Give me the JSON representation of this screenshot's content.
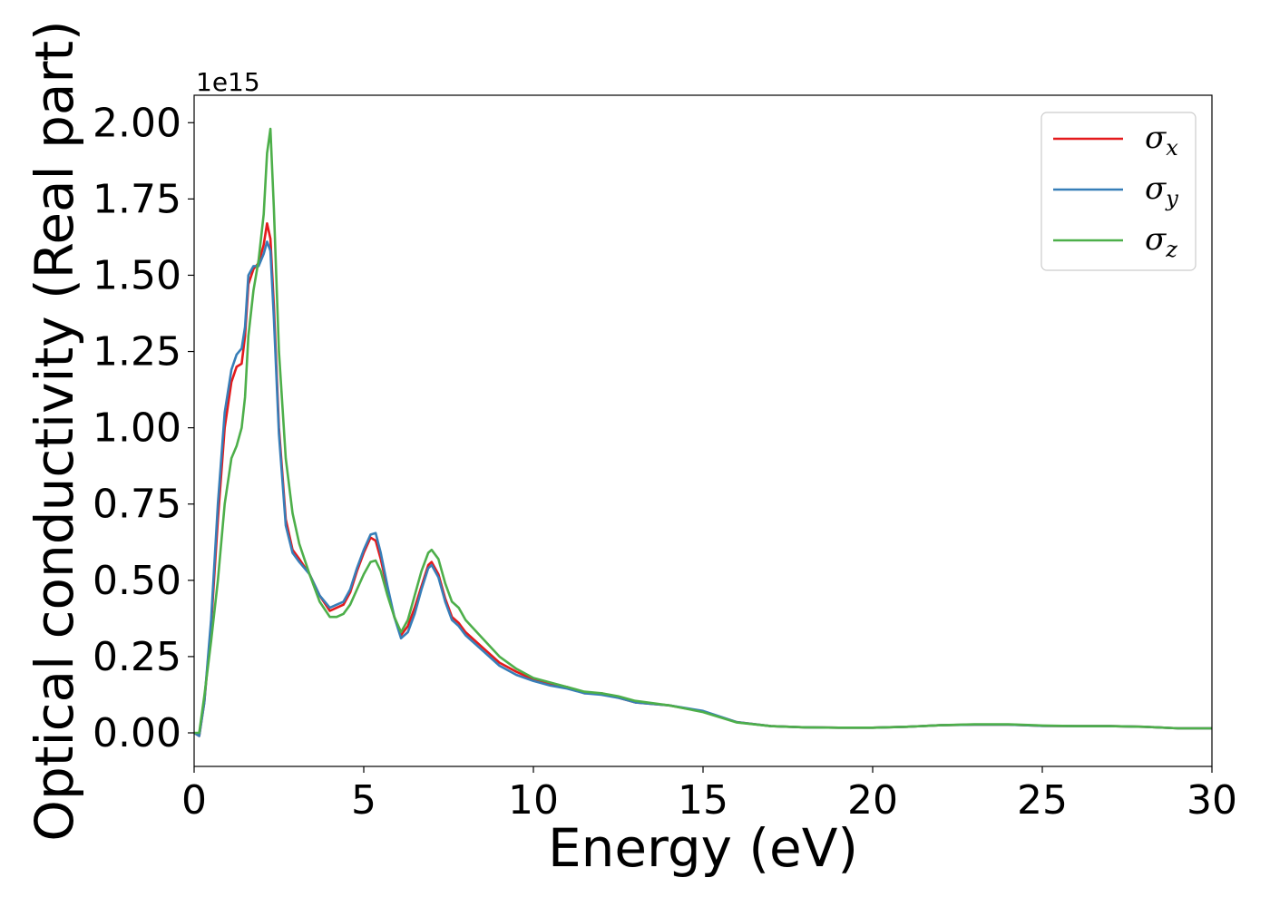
{
  "chart_data": {
    "type": "line",
    "xlabel": "Energy (eV)",
    "ylabel": "Optical conductivity (Real part)",
    "y_offset_label": "1e15",
    "xlim": [
      0,
      30
    ],
    "ylim": [
      -0.11,
      2.09
    ],
    "x_ticks": [
      0,
      5,
      10,
      15,
      20,
      25,
      30
    ],
    "x_tick_labels": [
      "0",
      "5",
      "10",
      "15",
      "20",
      "25",
      "30"
    ],
    "y_ticks": [
      0,
      0.25,
      0.5,
      0.75,
      1.0,
      1.25,
      1.5,
      1.75,
      2.0
    ],
    "y_tick_labels": [
      "0.00",
      "0.25",
      "0.50",
      "0.75",
      "1.00",
      "1.25",
      "1.50",
      "1.75",
      "2.00"
    ],
    "grid": false,
    "legend_position": "top-right",
    "series": [
      {
        "name": "σx",
        "symbol": "σ",
        "subscript": "x",
        "color": "#e41a1c",
        "x": [
          0,
          0.15,
          0.3,
          0.5,
          0.7,
          0.9,
          1.1,
          1.25,
          1.4,
          1.5,
          1.6,
          1.75,
          1.9,
          2.05,
          2.15,
          2.25,
          2.35,
          2.5,
          2.7,
          2.9,
          3.1,
          3.4,
          3.7,
          4.0,
          4.2,
          4.4,
          4.6,
          4.8,
          5.0,
          5.2,
          5.35,
          5.5,
          5.7,
          5.9,
          6.1,
          6.3,
          6.5,
          6.7,
          6.9,
          7.0,
          7.2,
          7.4,
          7.6,
          7.8,
          8.0,
          8.5,
          9.0,
          9.5,
          10.0,
          10.5,
          11.0,
          11.5,
          12.0,
          12.5,
          13.0,
          14.0,
          15.0,
          16.0,
          17.0,
          18.0,
          19.0,
          20.0,
          21.0,
          22.0,
          23.0,
          24.0,
          25.0,
          26.0,
          27.0,
          28.0,
          29.0,
          30.0
        ],
        "y": [
          0.0,
          -0.01,
          0.1,
          0.35,
          0.7,
          1.0,
          1.15,
          1.2,
          1.21,
          1.3,
          1.47,
          1.52,
          1.54,
          1.6,
          1.67,
          1.62,
          1.4,
          1.0,
          0.7,
          0.6,
          0.57,
          0.52,
          0.45,
          0.4,
          0.41,
          0.42,
          0.46,
          0.53,
          0.59,
          0.64,
          0.63,
          0.57,
          0.47,
          0.38,
          0.32,
          0.35,
          0.41,
          0.48,
          0.55,
          0.56,
          0.52,
          0.44,
          0.38,
          0.36,
          0.33,
          0.28,
          0.23,
          0.2,
          0.175,
          0.16,
          0.15,
          0.13,
          0.13,
          0.115,
          0.1,
          0.09,
          0.07,
          0.035,
          0.022,
          0.018,
          0.017,
          0.017,
          0.02,
          0.025,
          0.027,
          0.027,
          0.023,
          0.022,
          0.022,
          0.02,
          0.015,
          0.015
        ]
      },
      {
        "name": "σy",
        "symbol": "σ",
        "subscript": "y",
        "color": "#377eb8",
        "x": [
          0,
          0.15,
          0.3,
          0.5,
          0.7,
          0.9,
          1.1,
          1.25,
          1.4,
          1.5,
          1.6,
          1.75,
          1.9,
          2.05,
          2.15,
          2.25,
          2.35,
          2.5,
          2.7,
          2.9,
          3.1,
          3.4,
          3.7,
          4.0,
          4.2,
          4.4,
          4.6,
          4.8,
          5.0,
          5.2,
          5.35,
          5.5,
          5.7,
          5.9,
          6.1,
          6.3,
          6.5,
          6.7,
          6.9,
          7.0,
          7.2,
          7.4,
          7.6,
          7.8,
          8.0,
          8.5,
          9.0,
          9.5,
          10.0,
          10.5,
          11.0,
          11.5,
          12.0,
          12.5,
          13.0,
          14.0,
          15.0,
          16.0,
          17.0,
          18.0,
          19.0,
          20.0,
          21.0,
          22.0,
          23.0,
          24.0,
          25.0,
          26.0,
          27.0,
          28.0,
          29.0,
          30.0
        ],
        "y": [
          0.0,
          -0.01,
          0.1,
          0.37,
          0.75,
          1.05,
          1.19,
          1.24,
          1.26,
          1.33,
          1.5,
          1.53,
          1.53,
          1.57,
          1.61,
          1.58,
          1.36,
          0.98,
          0.68,
          0.59,
          0.56,
          0.52,
          0.45,
          0.41,
          0.42,
          0.43,
          0.47,
          0.54,
          0.6,
          0.65,
          0.655,
          0.59,
          0.48,
          0.38,
          0.31,
          0.33,
          0.39,
          0.47,
          0.54,
          0.55,
          0.51,
          0.43,
          0.37,
          0.35,
          0.32,
          0.27,
          0.22,
          0.19,
          0.17,
          0.155,
          0.145,
          0.13,
          0.125,
          0.115,
          0.1,
          0.09,
          0.072,
          0.035,
          0.022,
          0.018,
          0.017,
          0.017,
          0.02,
          0.025,
          0.027,
          0.027,
          0.023,
          0.022,
          0.022,
          0.02,
          0.015,
          0.015
        ]
      },
      {
        "name": "σz",
        "symbol": "σ",
        "subscript": "z",
        "color": "#4daf4a",
        "x": [
          0,
          0.15,
          0.3,
          0.5,
          0.7,
          0.9,
          1.1,
          1.25,
          1.4,
          1.5,
          1.6,
          1.75,
          1.9,
          2.05,
          2.15,
          2.25,
          2.35,
          2.5,
          2.7,
          2.9,
          3.1,
          3.4,
          3.7,
          4.0,
          4.2,
          4.4,
          4.6,
          4.8,
          5.0,
          5.2,
          5.35,
          5.5,
          5.7,
          5.9,
          6.1,
          6.3,
          6.5,
          6.7,
          6.9,
          7.0,
          7.2,
          7.4,
          7.6,
          7.8,
          8.0,
          8.5,
          9.0,
          9.5,
          10.0,
          10.5,
          11.0,
          11.5,
          12.0,
          12.5,
          13.0,
          14.0,
          15.0,
          16.0,
          17.0,
          18.0,
          19.0,
          20.0,
          21.0,
          22.0,
          23.0,
          24.0,
          25.0,
          26.0,
          27.0,
          28.0,
          29.0,
          30.0
        ],
        "y": [
          0.0,
          0.0,
          0.12,
          0.3,
          0.5,
          0.75,
          0.9,
          0.94,
          1.0,
          1.1,
          1.3,
          1.45,
          1.55,
          1.7,
          1.9,
          1.98,
          1.72,
          1.25,
          0.9,
          0.72,
          0.62,
          0.52,
          0.43,
          0.38,
          0.38,
          0.39,
          0.42,
          0.47,
          0.52,
          0.56,
          0.565,
          0.53,
          0.45,
          0.38,
          0.33,
          0.37,
          0.45,
          0.53,
          0.59,
          0.6,
          0.57,
          0.49,
          0.43,
          0.41,
          0.37,
          0.31,
          0.25,
          0.21,
          0.18,
          0.165,
          0.15,
          0.135,
          0.13,
          0.12,
          0.105,
          0.09,
          0.068,
          0.034,
          0.022,
          0.018,
          0.017,
          0.017,
          0.02,
          0.025,
          0.028,
          0.028,
          0.024,
          0.022,
          0.022,
          0.02,
          0.015,
          0.015
        ]
      }
    ]
  }
}
